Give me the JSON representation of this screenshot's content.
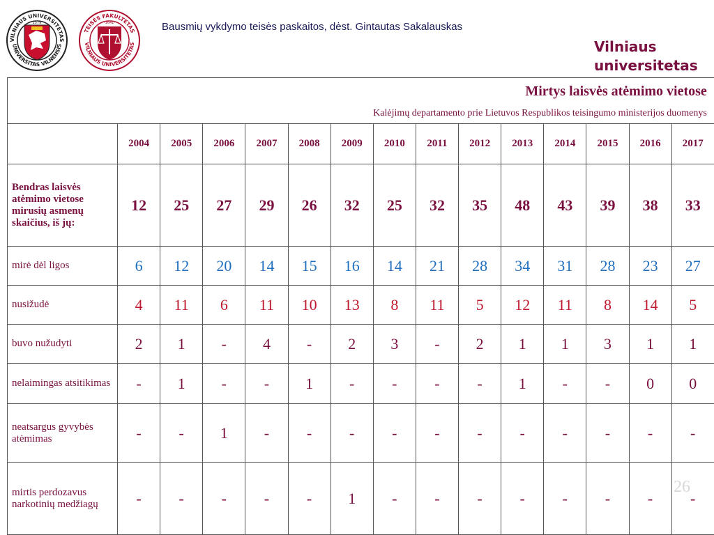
{
  "header": {
    "title": "Bausmių vykdymo teisės paskaitos, dėst. Gintautas Sakalauskas",
    "brand_line1": "Vilniaus",
    "brand_line2": "universitetas"
  },
  "logos": {
    "university": {
      "text_top": "VILNIAUS UNIVERSITETAS",
      "text_bottom": "UNIVERSITAS VILNENSIS",
      "year": "1579"
    },
    "faculty": {
      "text_top": "TEISĖS FAKULTETAS",
      "text_bottom": "VILNIAUS UNIVERSITETAS",
      "year": "1641"
    }
  },
  "table": {
    "title": "Mirtys laisvės atėmimo vietose",
    "source": "Kalėjimų departamento prie Lietuvos Respublikos teisingumo ministerijos duomenys",
    "years": [
      "2004",
      "2005",
      "2006",
      "2007",
      "2008",
      "2009",
      "2010",
      "2011",
      "2012",
      "2013",
      "2014",
      "2015",
      "2016",
      "2017"
    ],
    "rows": [
      {
        "label": "Bendras laisvės atėmimo vietose mirusių asmenų skaičius, iš jų:",
        "values": [
          "12",
          "25",
          "27",
          "29",
          "26",
          "32",
          "25",
          "32",
          "35",
          "48",
          "43",
          "39",
          "38",
          "33"
        ]
      },
      {
        "label": "mirė dėl ligos",
        "values": [
          "6",
          "12",
          "20",
          "14",
          "15",
          "16",
          "14",
          "21",
          "28",
          "34",
          "31",
          "28",
          "23",
          "27"
        ]
      },
      {
        "label": "nusižudė",
        "values": [
          "4",
          "11",
          "6",
          "11",
          "10",
          "13",
          "8",
          "11",
          "5",
          "12",
          "11",
          "8",
          "14",
          "5"
        ]
      },
      {
        "label": "buvo nužudyti",
        "values": [
          "2",
          "1",
          "-",
          "4",
          "-",
          "2",
          "3",
          "-",
          "2",
          "1",
          "1",
          "3",
          "1",
          "1"
        ]
      },
      {
        "label": "nelaimingas atsitikimas",
        "values": [
          "-",
          "1",
          "-",
          "-",
          "1",
          "-",
          "-",
          "-",
          "-",
          "1",
          "-",
          "-",
          "0",
          "0"
        ]
      },
      {
        "label": "neatsargus gyvybės atėmimas",
        "values": [
          "-",
          "-",
          "1",
          "-",
          "-",
          "-",
          "-",
          "-",
          "-",
          "-",
          "-",
          "-",
          "-",
          "-"
        ]
      },
      {
        "label": "mirtis perdozavus narkotinių medžiagų",
        "values": [
          "-",
          "-",
          "-",
          "-",
          "-",
          "1",
          "-",
          "-",
          "-",
          "-",
          "-",
          "-",
          "-",
          "-"
        ]
      }
    ]
  },
  "page_number": "26",
  "colors": {
    "maroon": "#7a1040",
    "blue": "#1e6fbf",
    "red": "#c0192e"
  }
}
